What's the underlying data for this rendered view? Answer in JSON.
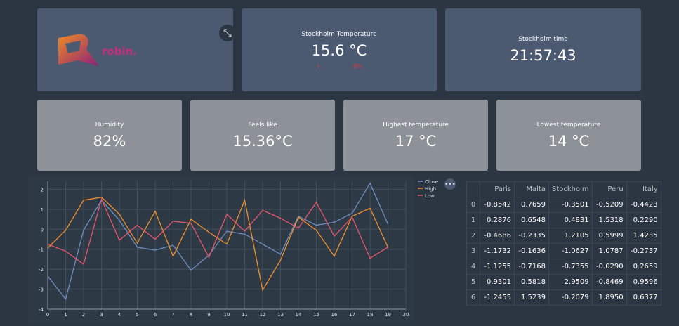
{
  "logo": {
    "text": "robin."
  },
  "metrics": [
    {
      "label": "Stockholm Temperature",
      "value": "15.6 °C",
      "delta_arrow": "↓",
      "delta": "-8%"
    },
    {
      "label": "Stockholm time",
      "value": "21:57:43"
    },
    {
      "label": "Humidity",
      "value": "82%"
    },
    {
      "label": "Feels like",
      "value": "15.36°C"
    },
    {
      "label": "Highest temperature",
      "value": "17 °C"
    },
    {
      "label": "Lowest temperature",
      "value": "14 °C"
    }
  ],
  "chart_data": {
    "type": "line",
    "x": [
      0,
      1,
      2,
      3,
      4,
      5,
      6,
      7,
      8,
      9,
      10,
      11,
      12,
      13,
      14,
      15,
      16,
      17,
      18,
      19
    ],
    "xlim": [
      0,
      20
    ],
    "xticks": [
      0,
      1,
      2,
      3,
      4,
      5,
      6,
      7,
      8,
      9,
      10,
      11,
      12,
      13,
      14,
      15,
      16,
      17,
      18,
      19,
      20
    ],
    "ylim": [
      -4,
      2.4
    ],
    "yticks": [
      -4,
      -3,
      -2,
      -1,
      0,
      1,
      2
    ],
    "grid": true,
    "series": [
      {
        "name": "Close",
        "color": "#6e8fc0",
        "values": [
          -2.35,
          -3.5,
          -0.05,
          1.45,
          0.45,
          -0.9,
          -1.05,
          -0.8,
          -2.05,
          -1.3,
          -0.1,
          -0.25,
          -0.75,
          -1.25,
          0.65,
          0.2,
          0.35,
          0.8,
          2.3,
          0.25
        ]
      },
      {
        "name": "High",
        "color": "#f0902a",
        "values": [
          -0.95,
          -0.05,
          1.45,
          1.6,
          0.75,
          -0.7,
          0.9,
          -1.35,
          0.5,
          -0.15,
          -0.75,
          1.45,
          -3.05,
          -1.55,
          0.6,
          -0.05,
          -1.35,
          0.65,
          1.05,
          -0.9
        ]
      },
      {
        "name": "Low",
        "color": "#e9566a",
        "values": [
          -0.75,
          -1.1,
          -1.75,
          1.5,
          -0.55,
          0.2,
          -0.5,
          0.4,
          0.3,
          -1.4,
          0.75,
          -0.1,
          0.95,
          0.55,
          0.05,
          1.35,
          -0.35,
          0.6,
          -1.45,
          -0.9
        ]
      }
    ]
  },
  "table": {
    "columns": [
      "Paris",
      "Malta",
      "Stockholm",
      "Peru",
      "Italy"
    ],
    "index": [
      0,
      1,
      2,
      3,
      4,
      5,
      6
    ],
    "rows": [
      [
        "-0.8542",
        "0.7659",
        "-0.3501",
        "-0.5209",
        "-0.4423"
      ],
      [
        "0.2876",
        "0.6548",
        "0.4831",
        "1.5318",
        "0.2290"
      ],
      [
        "-0.4686",
        "-0.2335",
        "1.2105",
        "0.5999",
        "1.4235"
      ],
      [
        "-1.1732",
        "-0.1636",
        "-1.0627",
        "1.0787",
        "-0.2737"
      ],
      [
        "-1.1255",
        "-0.7168",
        "-0.7355",
        "-0.0290",
        "0.2659"
      ],
      [
        "0.9301",
        "0.5818",
        "2.9509",
        "-0.8469",
        "0.9596"
      ],
      [
        "-1.2455",
        "1.5239",
        "-0.2079",
        "1.8950",
        "0.6377"
      ]
    ]
  }
}
